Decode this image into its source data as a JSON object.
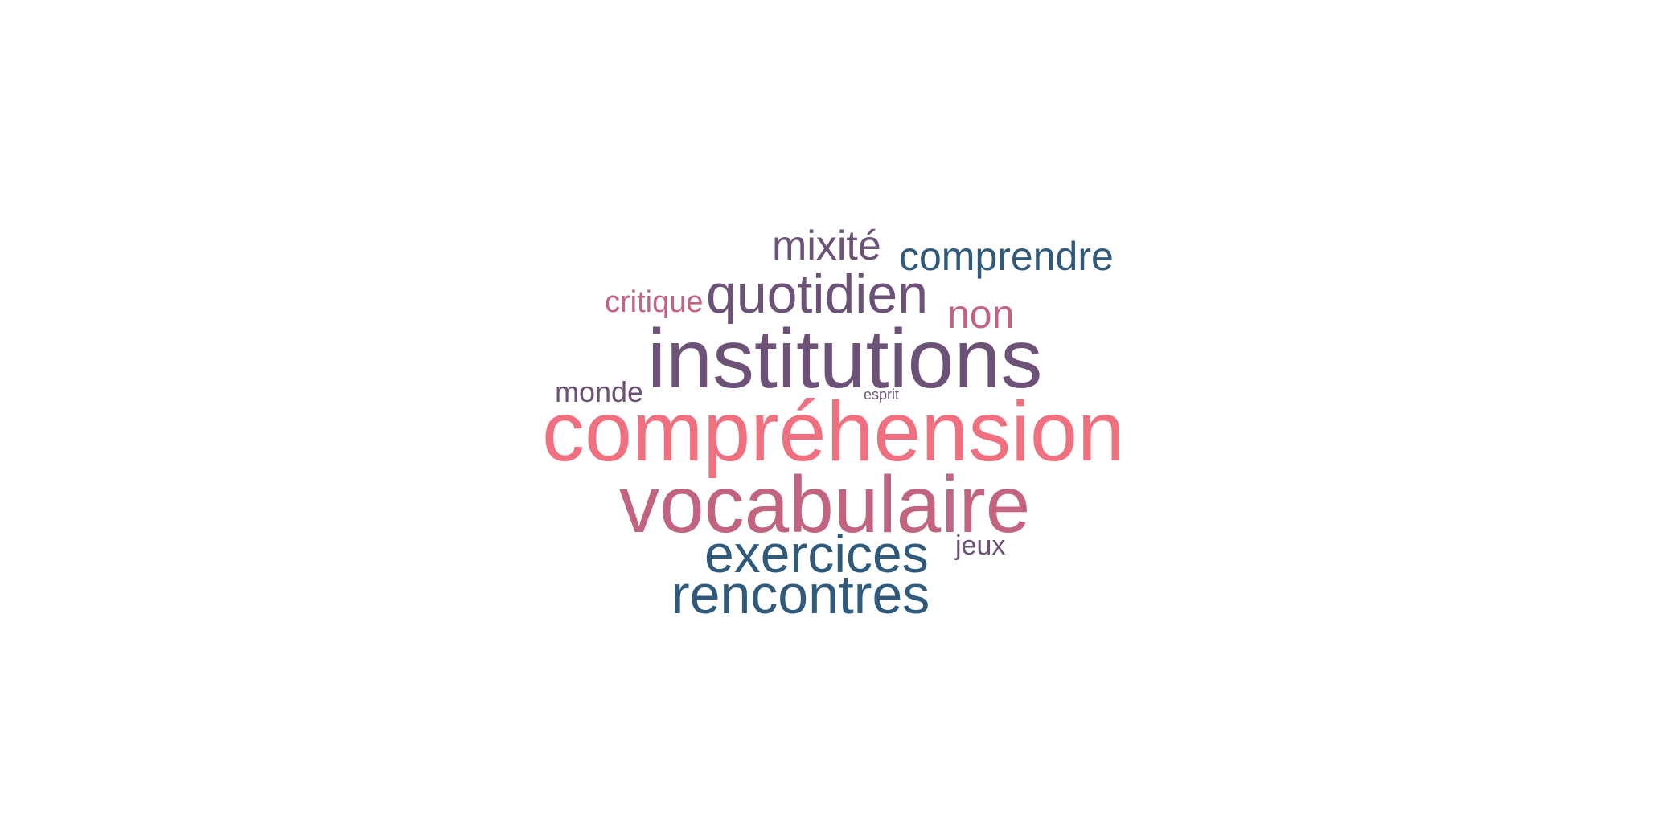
{
  "palette": {
    "purple": "#6b5276",
    "pink": "#f0707f",
    "mauve": "#c2647f",
    "blue": "#2f5a7c"
  },
  "words": [
    {
      "id": "mixite",
      "text": "mixité",
      "color": "#6b5276"
    },
    {
      "id": "comprendre",
      "text": "comprendre",
      "color": "#2f5a7c"
    },
    {
      "id": "critique",
      "text": "critique",
      "color": "#c2647f"
    },
    {
      "id": "quotidien",
      "text": "quotidien",
      "color": "#6b5276"
    },
    {
      "id": "non",
      "text": "non",
      "color": "#c2647f"
    },
    {
      "id": "institutions",
      "text": "institutions",
      "color": "#6b5276"
    },
    {
      "id": "monde",
      "text": "monde",
      "color": "#6b5276"
    },
    {
      "id": "esprit",
      "text": "esprit",
      "color": "#6b5276"
    },
    {
      "id": "comprehension",
      "text": "compréhension",
      "color": "#f0707f"
    },
    {
      "id": "vocabulaire",
      "text": "vocabulaire",
      "color": "#c2647f"
    },
    {
      "id": "exercices",
      "text": "exercices",
      "color": "#2f5a7c"
    },
    {
      "id": "jeux",
      "text": "jeux",
      "color": "#6b5276"
    },
    {
      "id": "rencontres",
      "text": "rencontres",
      "color": "#2f5a7c"
    }
  ]
}
